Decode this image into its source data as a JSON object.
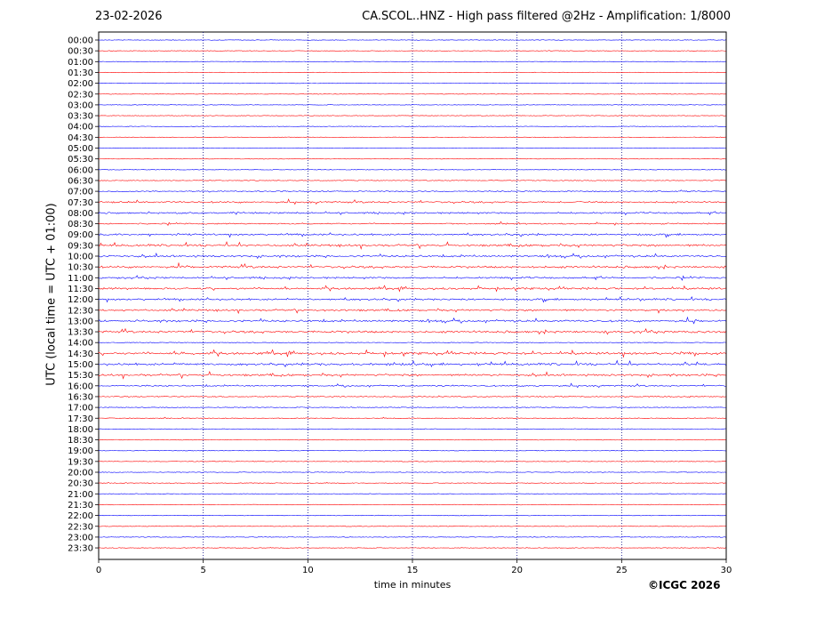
{
  "header": {
    "date": "23-02-2026",
    "title": "CA.SCOL..HNZ - High pass filtered @2Hz - Amplification: 1/8000"
  },
  "footer": {
    "copyright": "©ICGC 2026"
  },
  "chart_data": {
    "type": "line",
    "title": "CA.SCOL..HNZ - High pass filtered @2Hz - Amplification: 1/8000",
    "xlabel": "time in minutes",
    "ylabel": "UTC (local time = UTC + 01:00)",
    "xlim": [
      0,
      30
    ],
    "x_ticks": [
      0,
      5,
      10,
      15,
      20,
      25,
      30
    ],
    "vertical_gridlines_at": [
      5,
      10,
      15,
      20,
      25
    ],
    "grid": "vertical dotted",
    "colors": {
      "odd_traces": "#ff0000",
      "even_traces": "#0000ff",
      "grid": "#000080"
    },
    "traces": [
      {
        "label": "00:00",
        "activity": 0.05
      },
      {
        "label": "00:30",
        "activity": 0.05
      },
      {
        "label": "01:00",
        "activity": 0.05
      },
      {
        "label": "01:30",
        "activity": 0.05
      },
      {
        "label": "02:00",
        "activity": 0.05
      },
      {
        "label": "02:30",
        "activity": 0.05
      },
      {
        "label": "03:00",
        "activity": 0.05
      },
      {
        "label": "03:30",
        "activity": 0.05
      },
      {
        "label": "04:00",
        "activity": 0.06
      },
      {
        "label": "04:30",
        "activity": 0.06
      },
      {
        "label": "05:00",
        "activity": 0.06
      },
      {
        "label": "05:30",
        "activity": 0.07
      },
      {
        "label": "06:00",
        "activity": 0.08
      },
      {
        "label": "06:30",
        "activity": 0.12
      },
      {
        "label": "07:00",
        "activity": 0.3
      },
      {
        "label": "07:30",
        "activity": 0.55
      },
      {
        "label": "08:00",
        "activity": 0.5
      },
      {
        "label": "08:30",
        "activity": 0.35
      },
      {
        "label": "09:00",
        "activity": 0.6
      },
      {
        "label": "09:30",
        "activity": 0.7
      },
      {
        "label": "10:00",
        "activity": 0.65
      },
      {
        "label": "10:30",
        "activity": 0.75
      },
      {
        "label": "11:00",
        "activity": 0.55
      },
      {
        "label": "11:30",
        "activity": 0.7
      },
      {
        "label": "12:00",
        "activity": 0.6
      },
      {
        "label": "12:30",
        "activity": 0.6
      },
      {
        "label": "13:00",
        "activity": 0.7
      },
      {
        "label": "13:30",
        "activity": 0.75
      },
      {
        "label": "14:00",
        "activity": 0.1
      },
      {
        "label": "14:30",
        "activity": 0.85
      },
      {
        "label": "15:00",
        "activity": 0.75
      },
      {
        "label": "15:30",
        "activity": 0.7
      },
      {
        "label": "16:00",
        "activity": 0.45
      },
      {
        "label": "16:30",
        "activity": 0.25
      },
      {
        "label": "17:00",
        "activity": 0.15
      },
      {
        "label": "17:30",
        "activity": 0.15
      },
      {
        "label": "18:00",
        "activity": 0.1
      },
      {
        "label": "18:30",
        "activity": 0.1
      },
      {
        "label": "19:00",
        "activity": 0.08
      },
      {
        "label": "19:30",
        "activity": 0.08
      },
      {
        "label": "20:00",
        "activity": 0.08
      },
      {
        "label": "20:30",
        "activity": 0.1
      },
      {
        "label": "21:00",
        "activity": 0.08
      },
      {
        "label": "21:30",
        "activity": 0.1
      },
      {
        "label": "22:00",
        "activity": 0.1
      },
      {
        "label": "22:30",
        "activity": 0.08
      },
      {
        "label": "23:00",
        "activity": 0.1
      },
      {
        "label": "23:30",
        "activity": 0.08
      }
    ]
  }
}
